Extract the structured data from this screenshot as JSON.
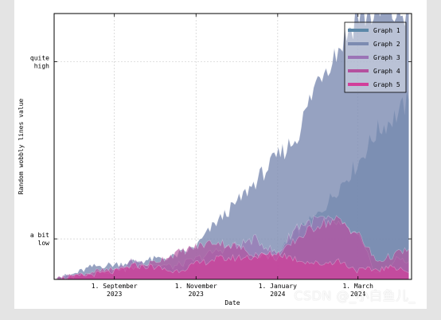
{
  "chart_data": {
    "type": "area",
    "title": "",
    "xlabel": "Date",
    "ylabel": "Random wobbly lines value",
    "x_ticks": [
      {
        "date": "2023-09-01",
        "line1": "1. September",
        "line2": "2023"
      },
      {
        "date": "2023-11-01",
        "line1": "1. November",
        "line2": "2023"
      },
      {
        "date": "2024-01-01",
        "line1": "1. January",
        "line2": "2024"
      },
      {
        "date": "2024-03-01",
        "line1": "1. March",
        "line2": "2024"
      }
    ],
    "y_ticks": [
      {
        "value": 20,
        "line1": "a bit",
        "line2": "low"
      },
      {
        "value": 160,
        "line1": "quite",
        "line2": "high"
      }
    ],
    "xlim": [
      "2023-07-18",
      "2024-04-10"
    ],
    "ylim": [
      -12,
      198
    ],
    "grid": true,
    "legend_position": "top-right",
    "dates": [
      "2023-07-20",
      "2023-08-01",
      "2023-08-15",
      "2023-09-01",
      "2023-09-15",
      "2023-10-01",
      "2023-10-15",
      "2023-11-01",
      "2023-11-15",
      "2023-12-01",
      "2023-12-15",
      "2024-01-01",
      "2024-01-15",
      "2024-02-01",
      "2024-02-15",
      "2024-03-01",
      "2024-03-15",
      "2024-04-01",
      "2024-04-08"
    ],
    "series": [
      {
        "name": "Graph 1",
        "color": "#5b87a8",
        "values": [
          -11,
          -10,
          -9,
          -7,
          -4,
          -3,
          -5,
          -2,
          2,
          3,
          5,
          8,
          25,
          40,
          60,
          80,
          105,
          120,
          130
        ]
      },
      {
        "name": "Graph 2",
        "color": "#7c8bb1",
        "values": [
          -11,
          -8,
          -2,
          0,
          2,
          4,
          6,
          14,
          32,
          48,
          65,
          85,
          100,
          150,
          170,
          198,
          198,
          198,
          198
        ]
      },
      {
        "name": "Graph 3",
        "color": "#9b74b6",
        "values": [
          -11,
          -9,
          -7,
          -5,
          3,
          0,
          -2,
          4,
          10,
          15,
          20,
          8,
          30,
          36,
          32,
          22,
          -8,
          5,
          2
        ]
      },
      {
        "name": "Graph 4",
        "color": "#b4519e",
        "values": [
          -11,
          -9,
          -6,
          -4,
          -3,
          2,
          8,
          14,
          18,
          14,
          8,
          5,
          20,
          32,
          35,
          24,
          2,
          9,
          12
        ]
      },
      {
        "name": "Graph 5",
        "color": "#d23f9a",
        "values": [
          -11,
          -10,
          -8,
          -6,
          -1,
          -2,
          -6,
          0,
          4,
          5,
          6,
          9,
          4,
          0,
          3,
          -5,
          -4,
          -2,
          -7
        ]
      }
    ]
  },
  "watermark": "CSDN @_小白鱼儿_"
}
